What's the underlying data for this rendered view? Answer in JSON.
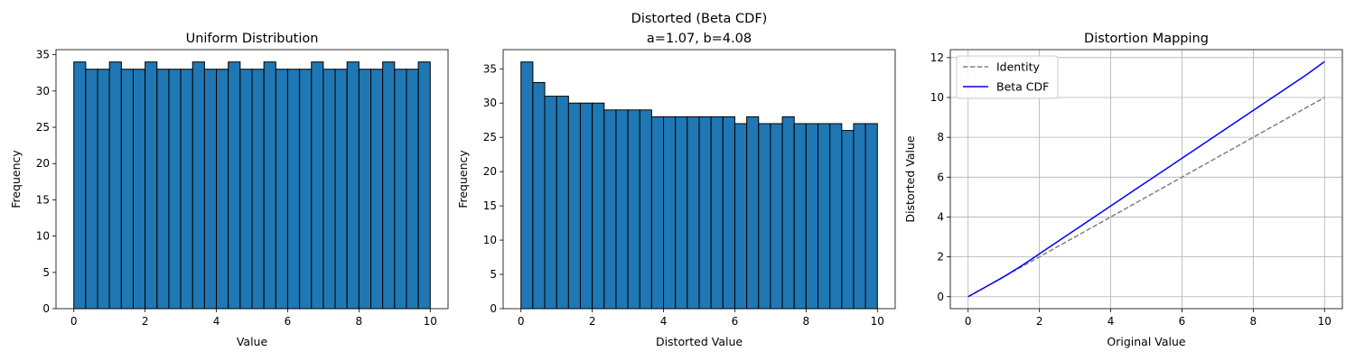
{
  "chart_data": [
    {
      "type": "bar",
      "title": "Uniform Distribution",
      "xlabel": "Value",
      "ylabel": "Frequency",
      "xlim": [
        -0.5,
        10.5
      ],
      "ylim": [
        0,
        35.7
      ],
      "xticks": [
        0,
        2,
        4,
        6,
        8,
        10
      ],
      "yticks": [
        0,
        5,
        10,
        15,
        20,
        25,
        30,
        35
      ],
      "bin_range": [
        0,
        10
      ],
      "values": [
        34,
        33,
        33,
        34,
        33,
        33,
        34,
        33,
        33,
        33,
        34,
        33,
        33,
        34,
        33,
        33,
        34,
        33,
        33,
        33,
        34,
        33,
        33,
        34,
        33,
        33,
        34,
        33,
        33,
        34
      ],
      "bar_color": "#1f77b4",
      "edge_color": "#000000",
      "grid": false
    },
    {
      "type": "bar",
      "title": "Distorted (Beta CDF)",
      "subtitle": "a=1.07, b=4.08",
      "xlabel": "Distorted Value",
      "ylabel": "Frequency",
      "xlim": [
        -0.5,
        10.5
      ],
      "ylim": [
        0,
        37.8
      ],
      "xticks": [
        0,
        2,
        4,
        6,
        8,
        10
      ],
      "yticks": [
        0,
        5,
        10,
        15,
        20,
        25,
        30,
        35
      ],
      "bin_range": [
        0,
        10
      ],
      "values": [
        36,
        33,
        31,
        31,
        30,
        30,
        30,
        29,
        29,
        29,
        29,
        28,
        28,
        28,
        28,
        28,
        28,
        28,
        27,
        28,
        27,
        27,
        28,
        27,
        27,
        27,
        27,
        26,
        27,
        27
      ],
      "bar_color": "#1f77b4",
      "edge_color": "#000000",
      "grid": false
    },
    {
      "type": "line",
      "title": "Distortion Mapping",
      "xlabel": "Original Value",
      "ylabel": "Distorted Value",
      "xlim": [
        -0.5,
        10.5
      ],
      "ylim": [
        -0.6,
        12.4
      ],
      "xticks": [
        0,
        2,
        4,
        6,
        8,
        10
      ],
      "yticks": [
        0,
        2,
        4,
        6,
        8,
        10,
        12
      ],
      "grid": true,
      "legend_position": "top-left",
      "series": [
        {
          "name": "Identity",
          "color": "#808080",
          "dash": true,
          "x": [
            0,
            10
          ],
          "y": [
            0,
            10
          ]
        },
        {
          "name": "Beta CDF",
          "color": "#0000ff",
          "dash": false,
          "x": [
            0,
            0.5,
            1,
            1.5,
            2,
            2.5,
            3,
            3.5,
            4,
            4.5,
            5,
            5.5,
            6,
            6.5,
            7,
            7.5,
            8,
            8.5,
            9,
            9.5,
            10
          ],
          "y": [
            0,
            0.5,
            1.0,
            1.55,
            2.15,
            2.75,
            3.35,
            3.95,
            4.55,
            5.15,
            5.75,
            6.35,
            6.95,
            7.55,
            8.15,
            8.75,
            9.35,
            9.95,
            10.55,
            11.15,
            11.8
          ]
        }
      ]
    }
  ]
}
